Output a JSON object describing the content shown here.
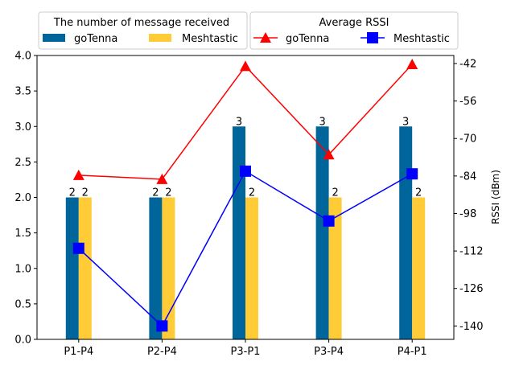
{
  "colors": {
    "gotenna_bar": "#00659a",
    "meshtastic_bar": "#ffcb36",
    "gotenna_line": "#ff0000",
    "meshtastic_line": "#0000ff"
  },
  "chart_data": {
    "type": "bar",
    "categories": [
      "P1-P4",
      "P2-P4",
      "P3-P1",
      "P3-P4",
      "P4-P1"
    ],
    "left_axis": {
      "label": "",
      "ylim": [
        0.0,
        4.0
      ],
      "ticks": [
        "0.0",
        "0.5",
        "1.0",
        "1.5",
        "2.0",
        "2.5",
        "3.0",
        "3.5",
        "4.0"
      ]
    },
    "right_axis": {
      "label": "RSSI (dBm)",
      "ylim": [
        -145,
        -39
      ],
      "ticks": [
        "-42",
        "-56",
        "-70",
        "-84",
        "-98",
        "-112",
        "-126",
        "-140"
      ]
    },
    "bar_legend_title": "The number of message received",
    "line_legend_title": "Average RSSI",
    "legend_placement": "top, above plot",
    "grid": false,
    "bar_series": [
      {
        "name": "goTenna",
        "values": [
          2,
          2,
          3,
          3,
          3
        ],
        "labels": [
          "2",
          "2",
          "3",
          "3",
          "3"
        ]
      },
      {
        "name": "Meshtastic",
        "values": [
          2,
          2,
          2,
          2,
          2
        ],
        "labels": [
          "2",
          "2",
          "2",
          "2",
          "2"
        ]
      }
    ],
    "line_series": [
      {
        "name": "goTenna",
        "marker": "triangle",
        "values": [
          -83.7,
          -85.2,
          -43.0,
          -76.0,
          -42.3
        ]
      },
      {
        "name": "Meshtastic",
        "marker": "square",
        "values": [
          -111.0,
          -140.0,
          -82.2,
          -100.8,
          -83.2
        ]
      }
    ]
  }
}
